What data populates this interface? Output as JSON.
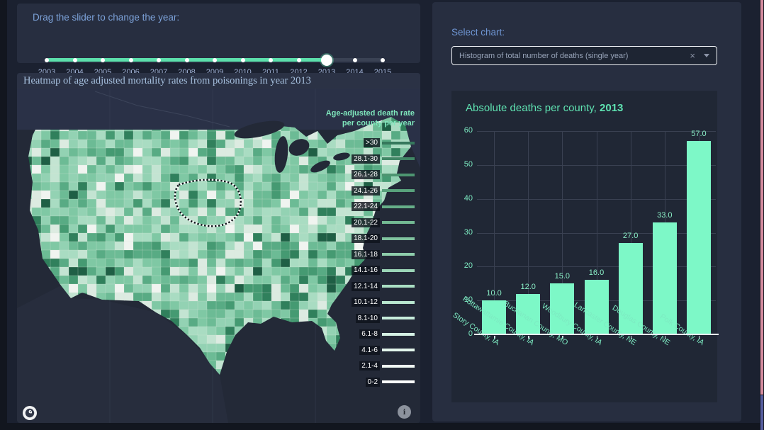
{
  "year_slider": {
    "label": "Drag the slider to change the year:",
    "years": [
      "2003",
      "2004",
      "2005",
      "2006",
      "2007",
      "2008",
      "2009",
      "2010",
      "2011",
      "2012",
      "2013",
      "2014",
      "2015"
    ],
    "selected_year": "2013",
    "selected_index": 10,
    "active_color": "#5ce0ac"
  },
  "heatmap": {
    "title": "Heatmap of age adjusted mortality rates from poisonings in year 2013",
    "legend": {
      "title_line1": "Age-adjusted death rate",
      "title_line2": "per county per year",
      "entries": [
        {
          "label": ">30",
          "color": "#35785c"
        },
        {
          "label": "28.1-30",
          "color": "#418766"
        },
        {
          "label": "26.1-28",
          "color": "#4d9571"
        },
        {
          "label": "24.1-26",
          "color": "#59a27c"
        },
        {
          "label": "22.1-24",
          "color": "#66ae88"
        },
        {
          "label": "20.1-22",
          "color": "#73b993"
        },
        {
          "label": "18.1-20",
          "color": "#80c39f"
        },
        {
          "label": "16.1-18",
          "color": "#8ecdab"
        },
        {
          "label": "14.1-16",
          "color": "#9cd6b7"
        },
        {
          "label": "12.1-14",
          "color": "#aadfc3"
        },
        {
          "label": "10.1-12",
          "color": "#b9e7cf"
        },
        {
          "label": "8.1-10",
          "color": "#c7eddb"
        },
        {
          "label": "6.1-8",
          "color": "#d5f2e4"
        },
        {
          "label": "4.1-6",
          "color": "#e3f6ec"
        },
        {
          "label": "2.1-4",
          "color": "#f0faf4"
        },
        {
          "label": "0-2",
          "color": "#fdfefd"
        }
      ]
    }
  },
  "chart_selector": {
    "label": "Select chart:",
    "value": "Histogram of total number of deaths (single year)",
    "clear_icon": "×"
  },
  "chart_data": {
    "type": "bar",
    "title_prefix": "Absolute deaths per county, ",
    "title_year": "2013",
    "categories": [
      "Story County, IA",
      "Pottawattamie County, IA",
      "Buchanan County, MO",
      "Woodbury County, IA",
      "Lancaster County, NE",
      "Douglas County, NE",
      "Polk County, IA"
    ],
    "values": [
      10,
      12,
      15,
      16,
      27,
      33,
      57
    ],
    "value_labels": [
      "10.0",
      "12.0",
      "15.0",
      "16.0",
      "27.0",
      "33.0",
      "57.0"
    ],
    "xlabel": "",
    "ylabel": "",
    "ylim": [
      0,
      60
    ],
    "yticks": [
      0,
      10,
      20,
      30,
      40,
      50,
      60
    ],
    "bar_color": "#7df8c7",
    "grid": true,
    "legend_position": "none"
  },
  "map_attribution": {
    "info_glyph": "i"
  }
}
